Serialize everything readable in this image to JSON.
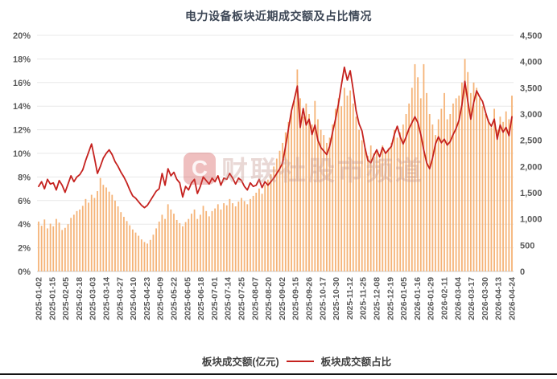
{
  "title": "电力设备板块近期成交额及占比情况",
  "watermark": {
    "logo_letter": "C",
    "text": "财联社股市频道"
  },
  "legend": [
    {
      "label": "板块成交额(亿元)",
      "color": "#ef9443",
      "type": "bar"
    },
    {
      "label": "板块成交额占比",
      "color": "#c5211e",
      "type": "line"
    }
  ],
  "colors": {
    "bar": "#f5b377",
    "line": "#c5211e",
    "grid": "#e8e8e8",
    "axis_line": "#c9c9c9",
    "axis_text": "#595959",
    "title_text": "#3d4756"
  },
  "chart_data": {
    "type": "bar+line combo, daily values",
    "title": "电力设备板块近期成交额及占比情况",
    "x_tick_labels": [
      "2025-01-02",
      "2025-01-15",
      "2025-02-05",
      "2025-02-18",
      "2025-03-03",
      "2025-03-14",
      "2025-03-27",
      "2025-04-10",
      "2025-04-23",
      "2025-05-09",
      "2025-05-22",
      "2025-06-05",
      "2025-06-18",
      "2025-07-01",
      "2025-07-14",
      "2025-07-25",
      "2025-08-07",
      "2025-08-20",
      "2025-09-02",
      "2025-09-15",
      "2025-09-26",
      "2025-10-17",
      "2025-10-30",
      "2025-11-12",
      "2025-11-25",
      "2025-12-08",
      "2025-12-19",
      "2026-01-05",
      "2026-01-16",
      "2026-01-29",
      "2026-02-11",
      "2026-03-04",
      "2026-03-17",
      "2026-03-30",
      "2026-04-13",
      "2026-04-24"
    ],
    "left_axis": {
      "title": "板块成交额占比",
      "unit": "%",
      "min": 0,
      "max": 20,
      "step": 2,
      "tick_labels": [
        "0%",
        "2%",
        "4%",
        "6%",
        "8%",
        "10%",
        "12%",
        "14%",
        "16%",
        "18%",
        "20%"
      ]
    },
    "right_axis": {
      "title": "板块成交额(亿元)",
      "min": 0,
      "max": 4500,
      "step": 500,
      "tick_labels": [
        "0",
        "500",
        "1,000",
        "1,500",
        "2,000",
        "2,500",
        "3,000",
        "3,500",
        "4,000",
        "4,500"
      ]
    },
    "grid": "horizontal",
    "legend_position": "bottom",
    "series": [
      {
        "name": "板块成交额(亿元)",
        "type": "bar",
        "axis": "right",
        "color": "#f5b377",
        "values": [
          950,
          870,
          990,
          820,
          910,
          860,
          1000,
          930,
          790,
          830,
          900,
          1020,
          1080,
          1150,
          1180,
          1250,
          1380,
          1310,
          1460,
          1400,
          1530,
          1780,
          1650,
          1600,
          1520,
          1460,
          1350,
          1240,
          1130,
          1040,
          960,
          880,
          800,
          740,
          680,
          610,
          560,
          530,
          600,
          700,
          820,
          950,
          1080,
          1000,
          1280,
          1180,
          1100,
          980,
          920,
          860,
          940,
          1000,
          1100,
          1180,
          1000,
          1080,
          1250,
          1150,
          1050,
          1150,
          1200,
          1280,
          1180,
          1300,
          1260,
          1380,
          1300,
          1240,
          1330,
          1400,
          1340,
          1280,
          1380,
          1440,
          1500,
          1580,
          1480,
          1650,
          1750,
          1850,
          2000,
          2150,
          2300,
          2450,
          2650,
          2850,
          3050,
          3250,
          3850,
          3300,
          2950,
          3200,
          3000,
          2800,
          3250,
          2900,
          2700,
          2600,
          2450,
          2550,
          2800,
          3100,
          3300,
          3150,
          3500,
          3350,
          3450,
          3200,
          2950,
          2700,
          2500,
          2350,
          2200,
          2400,
          2250,
          2300,
          2150,
          2400,
          2250,
          2350,
          2450,
          2700,
          2550,
          2650,
          2800,
          3000,
          3200,
          3500,
          3950,
          3700,
          3300,
          3950,
          3400,
          3000,
          2800,
          2600,
          2900,
          3100,
          3400,
          2900,
          3000,
          3200,
          3300,
          3350,
          3600,
          4050,
          3800,
          3400,
          3600,
          3500,
          3300,
          3150,
          3000,
          2900,
          2750,
          3100,
          2700,
          2950,
          2850,
          3050,
          2900,
          3350
        ]
      },
      {
        "name": "板块成交额占比",
        "type": "line",
        "axis": "left",
        "color": "#c5211e",
        "values": [
          7.2,
          7.6,
          7.0,
          7.8,
          7.4,
          7.5,
          6.9,
          7.7,
          7.3,
          6.7,
          7.4,
          8.1,
          7.6,
          8.0,
          8.2,
          8.6,
          9.4,
          10.1,
          10.8,
          9.6,
          8.3,
          8.9,
          9.6,
          10.0,
          10.3,
          9.9,
          9.3,
          8.9,
          8.4,
          8.0,
          7.5,
          6.9,
          6.4,
          6.2,
          5.9,
          5.6,
          5.4,
          5.6,
          6.0,
          6.4,
          6.8,
          7.0,
          8.3,
          7.3,
          8.7,
          8.1,
          8.4,
          7.8,
          7.5,
          6.3,
          7.2,
          6.9,
          7.5,
          7.8,
          6.6,
          7.2,
          8.0,
          7.7,
          7.4,
          7.9,
          7.6,
          8.1,
          7.3,
          7.9,
          7.8,
          8.3,
          7.9,
          7.4,
          7.9,
          7.7,
          7.2,
          6.9,
          7.5,
          7.2,
          7.3,
          7.8,
          7.1,
          7.6,
          7.3,
          7.6,
          7.9,
          8.3,
          8.7,
          9.2,
          10.6,
          12.1,
          13.6,
          14.6,
          15.7,
          12.2,
          13.8,
          12.4,
          12.9,
          11.6,
          12.4,
          11.1,
          10.5,
          10.2,
          9.9,
          10.6,
          11.8,
          12.9,
          14.2,
          15.8,
          17.3,
          16.2,
          17.0,
          15.4,
          13.6,
          12.5,
          11.9,
          10.5,
          9.4,
          9.2,
          9.8,
          10.3,
          9.7,
          10.5,
          10.0,
          10.3,
          10.6,
          11.6,
          12.3,
          11.4,
          10.8,
          11.4,
          12.1,
          12.6,
          13.1,
          12.6,
          11.6,
          10.3,
          9.2,
          8.7,
          9.6,
          10.8,
          11.4,
          10.9,
          11.2,
          10.7,
          11.0,
          11.6,
          12.1,
          12.8,
          14.1,
          16.1,
          14.4,
          12.9,
          14.3,
          15.3,
          14.8,
          14.4,
          13.5,
          12.7,
          12.3,
          12.9,
          11.2,
          12.4,
          11.8,
          12.2,
          11.5,
          13.1
        ]
      }
    ]
  }
}
